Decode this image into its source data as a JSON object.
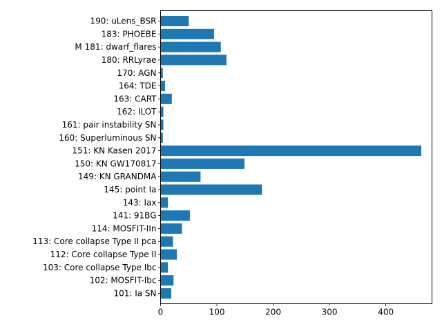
{
  "chart_data": {
    "type": "bar",
    "orientation": "horizontal",
    "title": "",
    "xlabel": "",
    "ylabel": "",
    "xlim": [
      0,
      482
    ],
    "xticks": [
      0,
      100,
      200,
      300,
      400
    ],
    "grid": false,
    "legend": "none",
    "bar_color": "#1f77b4",
    "categories": [
      "190: uLens_BSR",
      "183: PHOEBE",
      "M 181: dwarf_flares",
      "180: RRLyrae",
      "170: AGN",
      "164: TDE",
      "163: CART",
      "162: ILOT",
      "161: pair instability SN",
      "160: Superluminous SN",
      "151: KN Kasen 2017",
      "150: KN GW170817",
      "149: KN GRANDMA",
      "145: point Ia",
      "143: Iax",
      "141: 91BG",
      "114: MOSFIT-IIn",
      "113: Core collapse Type II pca",
      "112: Core collapse Type II",
      "103: Core collapse Type Ibc",
      "102: MOSFIT-Ibc",
      "101: Ia SN"
    ],
    "values": [
      50,
      95,
      107,
      117,
      4,
      8,
      20,
      5,
      5,
      4,
      463,
      149,
      71,
      180,
      13,
      52,
      38,
      22,
      29,
      13,
      23,
      19
    ]
  }
}
